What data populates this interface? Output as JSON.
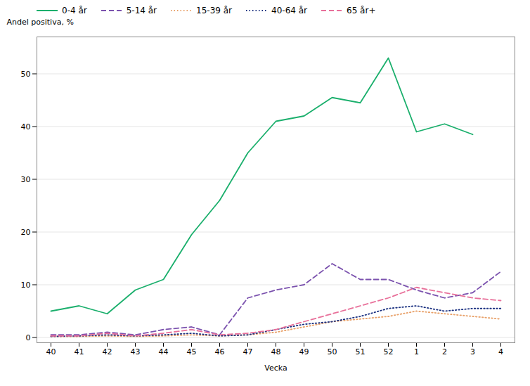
{
  "chart_data": {
    "type": "line",
    "xlabel": "Vecka",
    "ylabel": "Andel positiva, %",
    "categories": [
      "40",
      "41",
      "42",
      "43",
      "44",
      "45",
      "46",
      "47",
      "48",
      "49",
      "50",
      "51",
      "52",
      "1",
      "2",
      "3",
      "4"
    ],
    "series": [
      {
        "name": "0-4 år",
        "color": "#1aaf6c",
        "line_style": "solid",
        "values": [
          5.0,
          6.0,
          4.5,
          9.0,
          11.0,
          19.5,
          26.0,
          35.0,
          41.0,
          42.0,
          45.5,
          44.5,
          53.0,
          39.0,
          40.5,
          38.5,
          null
        ]
      },
      {
        "name": "5-14 år",
        "color": "#7b52ae",
        "line_style": "dashed",
        "values": [
          0.5,
          0.5,
          1.0,
          0.5,
          1.5,
          2.0,
          0.5,
          7.5,
          9.0,
          10.0,
          14.0,
          11.0,
          11.0,
          9.0,
          7.5,
          8.5,
          12.5
        ]
      },
      {
        "name": "15-39 år",
        "color": "#e8a068",
        "line_style": "dotted",
        "values": [
          0.2,
          0.2,
          0.3,
          0.2,
          0.3,
          0.5,
          0.3,
          0.5,
          1.0,
          2.0,
          3.0,
          3.5,
          4.0,
          5.0,
          4.5,
          4.0,
          3.5
        ]
      },
      {
        "name": "40-64 år",
        "color": "#1a3080",
        "line_style": "dotted",
        "values": [
          0.2,
          0.3,
          0.5,
          0.3,
          0.5,
          0.8,
          0.3,
          0.5,
          1.5,
          2.5,
          3.0,
          4.0,
          5.5,
          6.0,
          5.0,
          5.5,
          5.5
        ]
      },
      {
        "name": "65 år+",
        "color": "#e8709a",
        "line_style": "dashed",
        "values": [
          0.3,
          0.3,
          0.8,
          0.3,
          0.8,
          1.5,
          0.5,
          0.8,
          1.5,
          3.0,
          4.5,
          6.0,
          7.5,
          9.5,
          8.5,
          7.5,
          7.0
        ]
      }
    ],
    "ylim": [
      -1,
      57
    ],
    "yticks": [
      0,
      10,
      20,
      30,
      40,
      50
    ],
    "grid": true,
    "legend": "upper left"
  }
}
